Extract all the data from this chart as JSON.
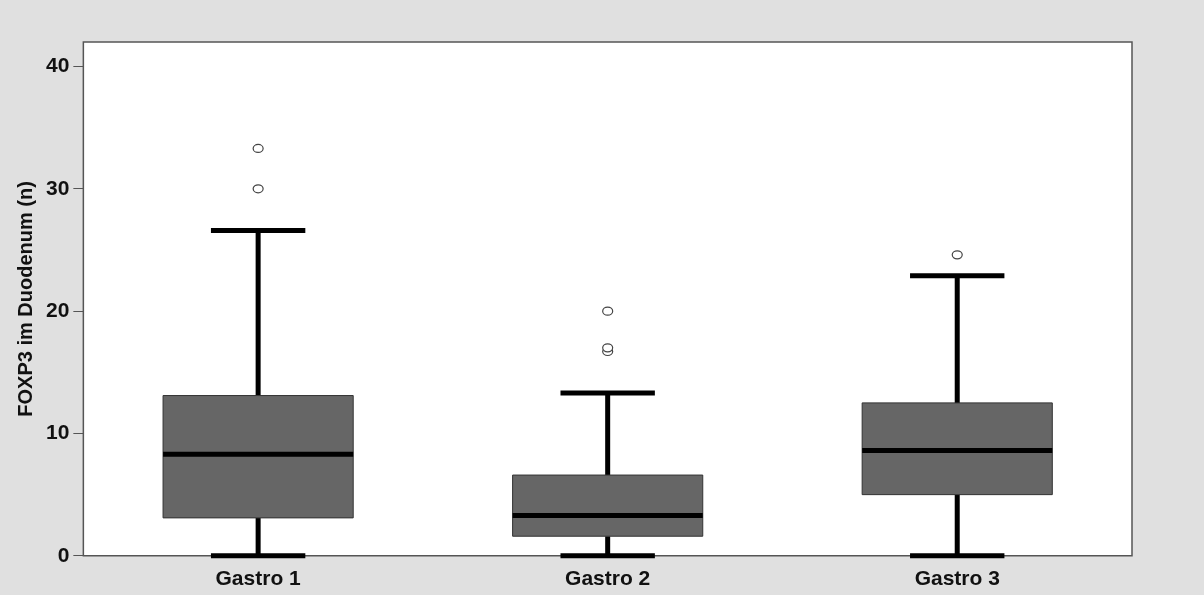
{
  "chart_data": {
    "type": "box",
    "ylabel": "FOXP3 im Duodenum (n)",
    "categories": [
      "Gastro 1",
      "Gastro 2",
      "Gastro 3"
    ],
    "color": "#666666",
    "ylim": [
      0,
      42
    ],
    "yticks": [
      0,
      10,
      20,
      30,
      40
    ],
    "grid": false,
    "boxes": [
      {
        "low": 0,
        "q1": 3.1,
        "median": 8.3,
        "q3": 13.1,
        "high": 26.6,
        "outliers": [
          30,
          33.3
        ]
      },
      {
        "low": 0,
        "q1": 1.6,
        "median": 3.3,
        "q3": 6.6,
        "high": 13.3,
        "outliers": [
          16.7,
          17,
          20
        ]
      },
      {
        "low": 0,
        "q1": 5,
        "median": 8.6,
        "q3": 12.5,
        "high": 22.9,
        "outliers": [
          24.6
        ]
      }
    ]
  }
}
